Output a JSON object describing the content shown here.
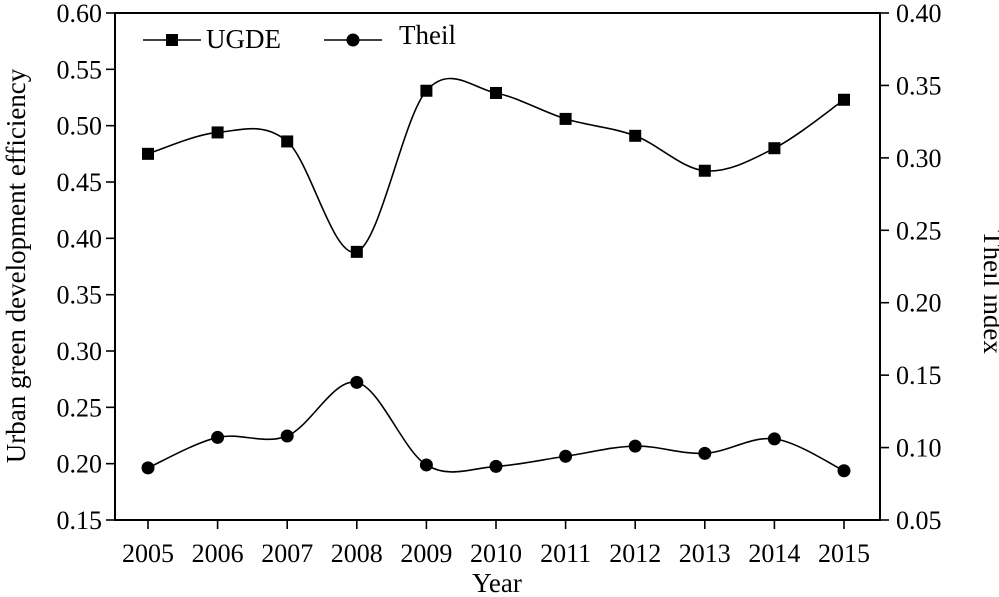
{
  "chart_data": {
    "type": "line",
    "x": [
      "2005",
      "2006",
      "2007",
      "2008",
      "2009",
      "2010",
      "2011",
      "2012",
      "2013",
      "2014",
      "2015"
    ],
    "xlabel": "Year",
    "ylabel": "Urban green development efficiency",
    "y2label": "Theil index",
    "ylim": [
      0.15,
      0.6
    ],
    "y2lim": [
      0.05,
      0.4
    ],
    "yticks": [
      "0.15",
      "0.20",
      "0.25",
      "0.30",
      "0.35",
      "0.40",
      "0.45",
      "0.50",
      "0.55",
      "0.60"
    ],
    "y2ticks": [
      "0.05",
      "0.10",
      "0.15",
      "0.20",
      "0.25",
      "0.30",
      "0.35",
      "0.40"
    ],
    "legend_position": "top-left",
    "grid": false,
    "series": [
      {
        "name": "UGDE",
        "axis": "left",
        "marker": "square",
        "color": "#000000",
        "values": [
          0.475,
          0.494,
          0.486,
          0.388,
          0.531,
          0.529,
          0.506,
          0.491,
          0.46,
          0.48,
          0.523
        ]
      },
      {
        "name": "Theil",
        "axis": "right",
        "marker": "circle",
        "color": "#000000",
        "values": [
          0.086,
          0.107,
          0.108,
          0.145,
          0.088,
          0.087,
          0.094,
          0.101,
          0.096,
          0.106,
          0.084
        ]
      }
    ]
  }
}
